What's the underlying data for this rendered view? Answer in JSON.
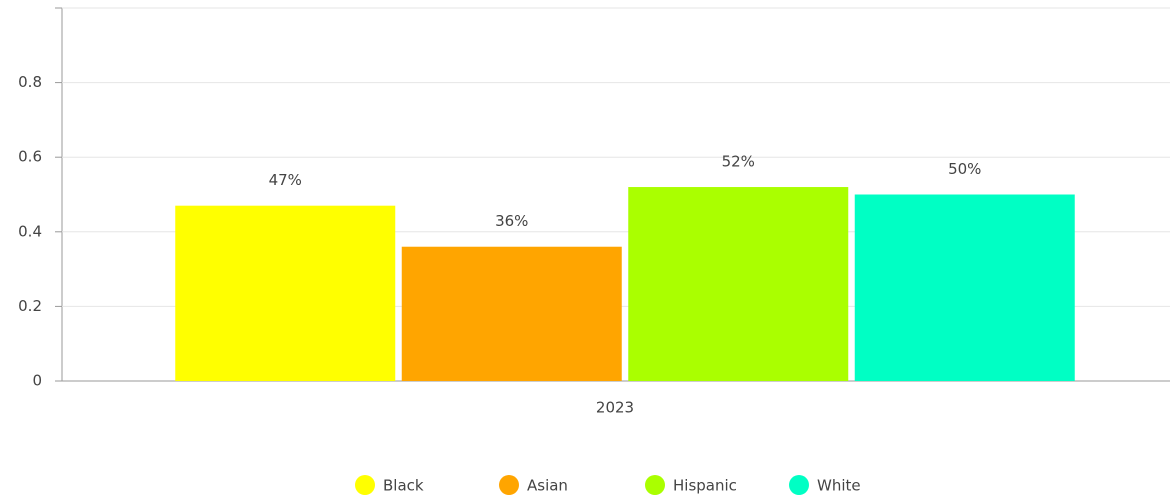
{
  "chart_data": {
    "type": "bar",
    "categories": [
      "2023"
    ],
    "series": [
      {
        "name": "Black",
        "color": "#ffff00",
        "values": [
          0.47
        ],
        "value_labels": [
          "47%"
        ]
      },
      {
        "name": "Asian",
        "color": "#ffa500",
        "values": [
          0.36
        ],
        "value_labels": [
          "36%"
        ]
      },
      {
        "name": "Hispanic",
        "color": "#aaff00",
        "values": [
          0.52
        ],
        "value_labels": [
          "52%"
        ]
      },
      {
        "name": "White",
        "color": "#00ffc4",
        "values": [
          0.5
        ],
        "value_labels": [
          "50%"
        ]
      }
    ],
    "ylim": [
      0,
      1
    ],
    "yticks": [
      0,
      0.2,
      0.4,
      0.6,
      0.8
    ],
    "grid": true,
    "legend": "bottom"
  }
}
